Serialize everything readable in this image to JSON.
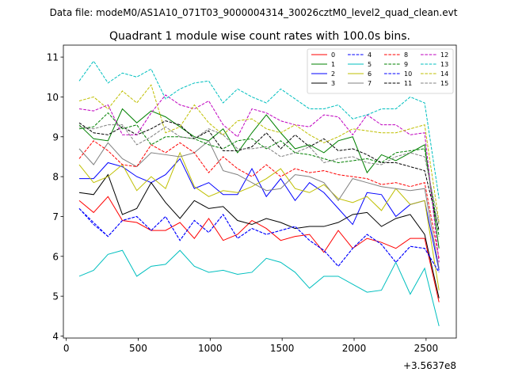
{
  "chart_data": {
    "type": "line",
    "suptitle": "Data file: modeM0/AS1A10_071T03_9000004314_30026cztM0_level2_quad_clean.evt",
    "title": "Quadrant 1 module wise count rates with 100.0s bins.",
    "xlabel": "",
    "ylabel": "",
    "x_offset_label": "+3.5637e8",
    "xlim": [
      -20,
      2710
    ],
    "ylim": [
      3.95,
      11.3
    ],
    "xticks": [
      0,
      500,
      1000,
      1500,
      2000,
      2500
    ],
    "yticks": [
      4,
      5,
      6,
      7,
      8,
      9,
      10,
      11
    ],
    "x": [
      90,
      190,
      290,
      390,
      490,
      590,
      690,
      790,
      890,
      990,
      1090,
      1190,
      1290,
      1390,
      1490,
      1590,
      1690,
      1790,
      1890,
      1990,
      2090,
      2190,
      2290,
      2390,
      2490,
      2590
    ],
    "legend_position": "upper right",
    "series": [
      {
        "name": "0",
        "color": "#ff0000",
        "dash": false,
        "values": [
          7.4,
          7.1,
          7.5,
          6.9,
          6.85,
          6.65,
          6.65,
          6.85,
          6.45,
          6.95,
          6.4,
          6.55,
          6.9,
          6.7,
          6.4,
          6.5,
          6.55,
          6.1,
          6.65,
          6.2,
          6.45,
          6.35,
          6.2,
          6.45,
          6.45,
          4.85
        ]
      },
      {
        "name": "1",
        "color": "#008000",
        "dash": false,
        "values": [
          9.3,
          8.95,
          8.9,
          9.7,
          9.35,
          9.65,
          9.5,
          9.25,
          9.0,
          8.9,
          9.2,
          8.6,
          9.1,
          9.55,
          9.1,
          8.7,
          8.8,
          8.6,
          8.9,
          9.0,
          8.1,
          8.55,
          8.4,
          8.6,
          8.8,
          6.2
        ]
      },
      {
        "name": "2",
        "color": "#0000ff",
        "dash": false,
        "values": [
          7.95,
          7.95,
          8.35,
          8.25,
          8.0,
          7.85,
          8.05,
          8.45,
          7.7,
          7.85,
          7.55,
          7.55,
          8.2,
          7.5,
          7.95,
          7.4,
          7.85,
          7.6,
          7.2,
          6.8,
          7.6,
          7.55,
          7.0,
          7.3,
          7.4,
          5.65
        ]
      },
      {
        "name": "3",
        "color": "#000000",
        "dash": false,
        "values": [
          7.6,
          7.55,
          8.05,
          7.05,
          7.2,
          7.85,
          7.35,
          6.95,
          7.4,
          7.2,
          7.25,
          6.9,
          6.8,
          6.95,
          6.85,
          6.7,
          6.75,
          6.75,
          6.85,
          7.05,
          7.1,
          6.75,
          6.95,
          7.05,
          6.55,
          4.95
        ]
      },
      {
        "name": "4",
        "color": "#0000ff",
        "dash": true,
        "values": [
          7.2,
          6.8,
          6.5,
          6.9,
          7.0,
          6.65,
          7.0,
          6.4,
          6.9,
          6.6,
          7.05,
          6.45,
          6.7,
          6.55,
          6.65,
          6.75,
          6.4,
          6.15,
          5.75,
          6.2,
          6.55,
          6.3,
          5.85,
          6.25,
          6.2,
          5.6
        ]
      },
      {
        "name": "5",
        "color": "#00bfbf",
        "dash": false,
        "values": [
          5.5,
          5.65,
          6.05,
          6.15,
          5.5,
          5.75,
          5.8,
          6.15,
          5.75,
          5.6,
          5.65,
          5.55,
          5.6,
          5.95,
          5.85,
          5.6,
          5.2,
          5.5,
          5.5,
          5.3,
          5.1,
          5.15,
          5.85,
          5.05,
          5.7,
          4.25
        ]
      },
      {
        "name": "6",
        "color": "#bfbf00",
        "dash": false,
        "values": [
          8.3,
          7.85,
          8.0,
          8.3,
          7.65,
          8.0,
          7.7,
          8.6,
          7.75,
          7.5,
          7.65,
          7.6,
          7.75,
          7.95,
          8.2,
          7.7,
          7.6,
          7.8,
          7.45,
          7.35,
          7.5,
          7.15,
          7.7,
          7.3,
          7.4,
          5.15
        ]
      },
      {
        "name": "7",
        "color": "#808080",
        "dash": false,
        "values": [
          8.7,
          8.3,
          8.85,
          8.45,
          8.25,
          8.6,
          8.55,
          8.5,
          8.6,
          8.9,
          8.15,
          8.05,
          7.85,
          7.65,
          7.7,
          8.05,
          8.0,
          7.85,
          7.4,
          7.95,
          7.85,
          7.75,
          7.7,
          7.65,
          7.7,
          5.7
        ]
      },
      {
        "name": "8",
        "color": "#ff0000",
        "dash": true,
        "values": [
          8.45,
          8.9,
          8.65,
          8.3,
          8.25,
          8.8,
          8.6,
          8.85,
          8.6,
          8.1,
          8.5,
          8.2,
          8.0,
          8.3,
          8.0,
          8.2,
          8.1,
          8.15,
          8.05,
          8.0,
          7.95,
          7.8,
          7.85,
          7.75,
          7.85,
          5.95
        ]
      },
      {
        "name": "9",
        "color": "#008000",
        "dash": true,
        "values": [
          9.2,
          9.25,
          9.6,
          9.2,
          9.3,
          8.8,
          9.0,
          9.0,
          8.95,
          8.8,
          8.7,
          8.9,
          8.95,
          8.7,
          8.9,
          8.6,
          8.55,
          8.45,
          8.35,
          8.4,
          8.45,
          8.35,
          8.6,
          8.65,
          8.7,
          6.5
        ]
      },
      {
        "name": "10",
        "color": "#0000ff",
        "dash": true,
        "values": [
          7.2,
          6.85,
          6.5,
          6.9,
          7.0,
          6.65,
          7.0,
          6.4,
          6.9,
          6.6,
          7.05,
          6.45,
          6.7,
          6.55,
          6.65,
          6.75,
          6.4,
          6.15,
          5.75,
          6.2,
          6.55,
          6.3,
          5.85,
          6.25,
          6.2,
          5.6
        ]
      },
      {
        "name": "11",
        "color": "#000000",
        "dash": true,
        "values": [
          9.35,
          9.1,
          9.05,
          9.25,
          9.05,
          9.2,
          9.4,
          9.3,
          8.95,
          9.15,
          8.65,
          8.65,
          8.75,
          9.1,
          8.7,
          9.05,
          8.75,
          8.95,
          8.65,
          8.7,
          8.55,
          8.35,
          8.35,
          8.25,
          8.15,
          6.65
        ]
      },
      {
        "name": "12",
        "color": "#bf00bf",
        "dash": true,
        "values": [
          9.7,
          9.65,
          9.8,
          9.05,
          9.05,
          9.6,
          10.05,
          9.8,
          9.7,
          9.9,
          9.3,
          9.0,
          9.7,
          9.6,
          9.4,
          9.3,
          9.25,
          9.55,
          9.5,
          9.05,
          9.55,
          9.3,
          9.3,
          9.05,
          9.1,
          5.85
        ]
      },
      {
        "name": "13",
        "color": "#00bfbf",
        "dash": true,
        "values": [
          10.4,
          10.9,
          10.35,
          10.6,
          10.5,
          10.7,
          9.95,
          10.2,
          10.35,
          10.4,
          9.85,
          10.2,
          10.0,
          9.85,
          10.2,
          9.95,
          9.7,
          9.7,
          9.8,
          9.45,
          9.55,
          9.7,
          9.7,
          10.0,
          9.85,
          7.45
        ]
      },
      {
        "name": "14",
        "color": "#bfbf00",
        "dash": true,
        "values": [
          9.9,
          10.0,
          9.7,
          10.15,
          9.85,
          10.3,
          9.1,
          9.25,
          9.8,
          9.35,
          9.05,
          9.4,
          9.45,
          9.2,
          9.1,
          9.3,
          9.05,
          8.85,
          9.0,
          9.2,
          9.15,
          9.1,
          9.1,
          9.2,
          9.3,
          6.85
        ]
      },
      {
        "name": "15",
        "color": "#808080",
        "dash": true,
        "values": [
          9.25,
          9.2,
          9.3,
          9.3,
          8.8,
          9.0,
          9.25,
          9.0,
          8.95,
          9.2,
          9.05,
          8.7,
          8.7,
          8.75,
          8.5,
          8.6,
          8.75,
          8.35,
          8.45,
          8.5,
          8.35,
          8.3,
          8.5,
          8.6,
          8.5,
          6.8
        ]
      }
    ]
  }
}
